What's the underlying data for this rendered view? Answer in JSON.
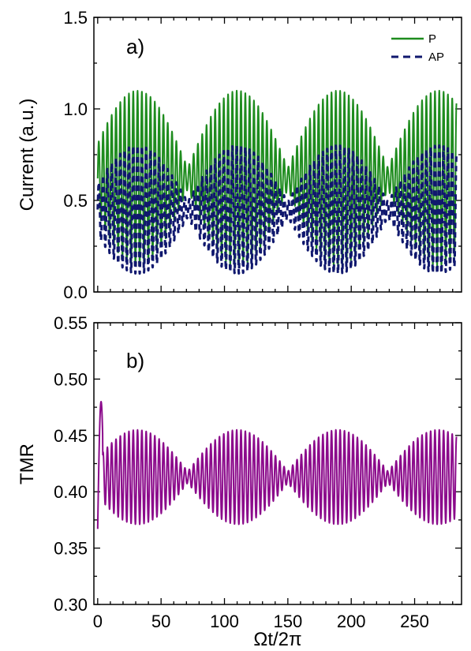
{
  "colors": {
    "P": "#1e8c1e",
    "AP": "#10186e",
    "TMR": "#8b0a8b",
    "axis": "#000000"
  },
  "chart_data": [
    {
      "type": "line",
      "panel_label": "a)",
      "xlabel": "",
      "ylabel": "Current (a.u.)",
      "xlim": [
        -3,
        287
      ],
      "ylim": [
        0.0,
        1.5
      ],
      "x_ticks": [
        0,
        50,
        100,
        150,
        200,
        250
      ],
      "y_ticks": [
        0.0,
        0.5,
        1.0,
        1.5
      ],
      "y_tick_labels": [
        "0.0",
        "0.5",
        "1.0",
        "1.5"
      ],
      "legend_position": "top-right",
      "x": [
        0,
        280
      ],
      "series": [
        {
          "name": "P",
          "style": "solid",
          "color_key": "P",
          "model": {
            "mean": 0.62,
            "amplitude_max": 0.48,
            "modulation_period": 79,
            "oscillation_period": 3.4,
            "x_end": 283
          }
        },
        {
          "name": "AP",
          "style": "dashed",
          "color_key": "AP",
          "model": {
            "mean": 0.45,
            "amplitude_max": 0.35,
            "modulation_period": 79,
            "oscillation_period": 3.4,
            "x_end": 283
          }
        }
      ]
    },
    {
      "type": "line",
      "panel_label": "b)",
      "xlabel": "Ωt/2π",
      "ylabel": "TMR",
      "xlim": [
        -3,
        287
      ],
      "ylim": [
        0.3,
        0.55
      ],
      "x_ticks": [
        0,
        50,
        100,
        150,
        200,
        250
      ],
      "x_tick_labels": [
        "0",
        "50",
        "100",
        "150",
        "200",
        "250"
      ],
      "y_ticks": [
        0.3,
        0.35,
        0.4,
        0.45,
        0.5,
        0.55
      ],
      "y_tick_labels": [
        "0.30",
        "0.35",
        "0.40",
        "0.45",
        "0.50",
        "0.55"
      ],
      "series": [
        {
          "name": "",
          "style": "solid",
          "color_key": "TMR",
          "model": {
            "mean": 0.413,
            "amplitude_max": 0.042,
            "modulation_period": 79,
            "oscillation_period": 3.4,
            "x_end": 283,
            "initial_peak": 0.48,
            "initial_min": 0.367
          }
        }
      ]
    }
  ]
}
